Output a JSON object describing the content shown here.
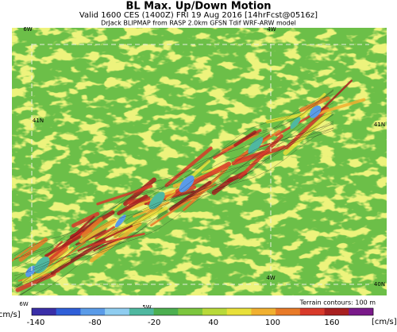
{
  "header": {
    "title": "BL Max. Up/Down Motion",
    "valid": "Valid 1600 CES (1400Z) FRI 19 Aug 2016 [14hrFcst@0516z]",
    "source": "DrJack BLIPMAP from RASP 2.0km GFSN Tdif WRF-ARW model"
  },
  "map": {
    "labels": [
      "6W",
      "4W",
      "41N",
      "41N",
      "4W",
      "40N",
      "6W",
      "5W"
    ]
  },
  "legend": {
    "unit_left": "[cm/s]",
    "unit_right": "[cm/s]",
    "terrain": "Terrain contours: 100 m",
    "ticks": [
      -140,
      -80,
      -20,
      40,
      100,
      160
    ]
  }
}
